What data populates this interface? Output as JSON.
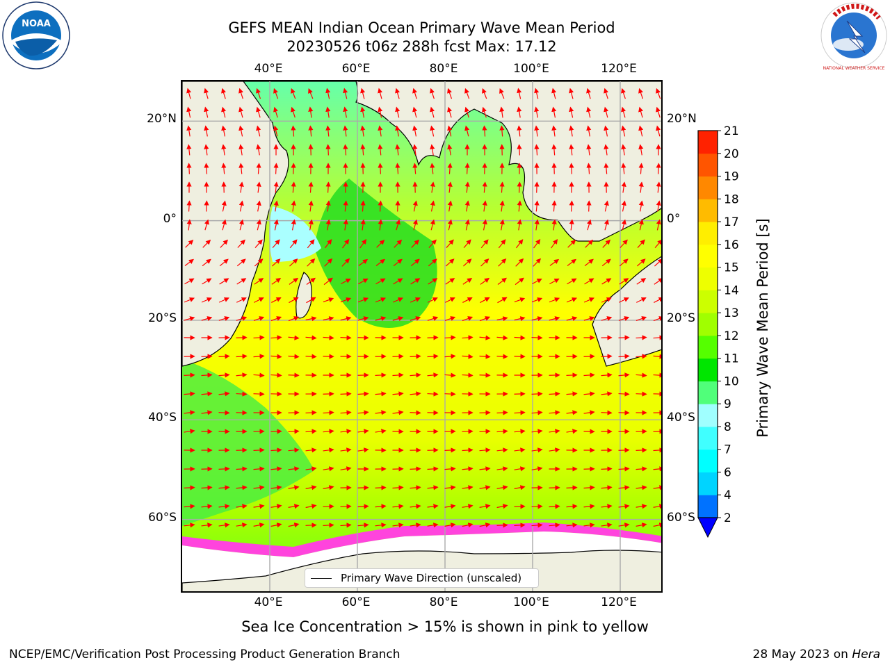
{
  "title": {
    "line1": "GEFS MEAN Indian Ocean Primary Wave Mean Period",
    "line2": "20230526 t06z 288h fcst   Max: 17.12"
  },
  "logos": {
    "left_text": "NOAA",
    "right_text": "NATIONAL WEATHER SERVICE"
  },
  "axes": {
    "lon_ticks": [
      "40°E",
      "60°E",
      "80°E",
      "100°E",
      "120°E"
    ],
    "lat_ticks_left": [
      "20°N",
      "0°",
      "20°S",
      "40°S",
      "60°S"
    ],
    "lat_ticks_right": [
      "20°N",
      "0°",
      "20°S",
      "40°S",
      "60°S"
    ],
    "lon_values": [
      40,
      60,
      80,
      100,
      120
    ],
    "lat_values": [
      20,
      0,
      -20,
      -40,
      -60
    ],
    "lon_range": [
      20,
      130
    ],
    "lat_range": [
      -75,
      28
    ],
    "grid": true
  },
  "legend": {
    "label": "Primary Wave Direction (unscaled)"
  },
  "colorbar": {
    "label": "Primary Wave Mean Period [s]",
    "ticks": [
      "2",
      "4",
      "6",
      "7",
      "8",
      "9",
      "10",
      "11",
      "12",
      "13",
      "14",
      "15",
      "16",
      "17",
      "18",
      "19",
      "20",
      "21"
    ],
    "colors": [
      "#0072ff",
      "#00d4ff",
      "#00ffff",
      "#40ffff",
      "#a0ffff",
      "#50ff7a",
      "#00e600",
      "#55ff00",
      "#a0ff00",
      "#ccff00",
      "#eeff00",
      "#ffff00",
      "#ffee00",
      "#ffbb00",
      "#ff8800",
      "#ff5500",
      "#ff2200"
    ],
    "under_color": "#0000ff"
  },
  "caption": "Sea Ice Concentration > 15% is shown in pink to yellow",
  "footer": {
    "left": "NCEP/EMC/Verification Post Processing Product Generation Branch",
    "right_date": "28 May 2023 on ",
    "right_host": "Hera"
  }
}
